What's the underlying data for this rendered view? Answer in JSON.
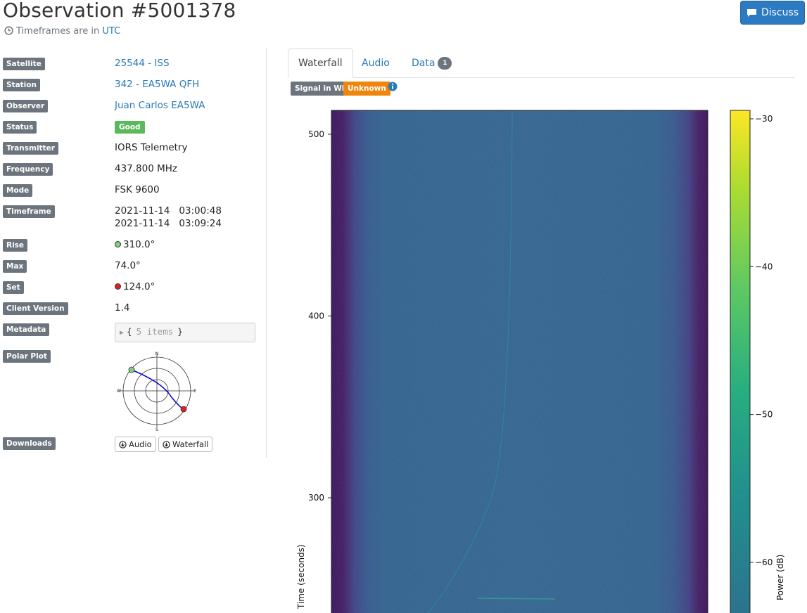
{
  "header": {
    "title": "Observation #5001378",
    "timeframes_prefix": "Timeframes are in",
    "timeframes_zone": "UTC",
    "discuss_label": "Discuss"
  },
  "details": {
    "satellite": {
      "label": "Satellite",
      "value": "25544 - ISS"
    },
    "station": {
      "label": "Station",
      "value": "342 - EA5WA QFH"
    },
    "observer": {
      "label": "Observer",
      "value": "Juan Carlos EA5WA"
    },
    "status": {
      "label": "Status",
      "value": "Good"
    },
    "transmitter": {
      "label": "Transmitter",
      "value": "IORS Telemetry"
    },
    "frequency": {
      "label": "Frequency",
      "value": "437.800 MHz"
    },
    "mode": {
      "label": "Mode",
      "value": "FSK 9600"
    },
    "timeframe": {
      "label": "Timeframe",
      "start": "2021-11-14   03:00:48",
      "end": "2021-11-14   03:09:24"
    },
    "rise": {
      "label": "Rise",
      "value": "310.0°",
      "color": "#7ed07e"
    },
    "max": {
      "label": "Max",
      "value": "74.0°"
    },
    "set": {
      "label": "Set",
      "value": "124.0°",
      "color": "#e02020"
    },
    "client_version": {
      "label": "Client Version",
      "value": "1.4"
    },
    "metadata": {
      "label": "Metadata",
      "open": "{",
      "items": "5 items",
      "close": "}"
    },
    "polar_plot": {
      "label": "Polar Plot",
      "n": "N",
      "s": "S",
      "e": "E",
      "w": "W"
    },
    "downloads": {
      "label": "Downloads",
      "audio": "Audio",
      "waterfall": "Waterfall"
    }
  },
  "tabs": [
    {
      "label": "Waterfall",
      "active": true
    },
    {
      "label": "Audio",
      "active": false
    },
    {
      "label": "Data",
      "active": false,
      "badge": "1"
    }
  ],
  "signal": {
    "label": "Signal in WF",
    "status": "Unknown",
    "status_color": "#f0850c",
    "info_icon": "info-circle-icon"
  },
  "chart_data": {
    "type": "heatmap",
    "ylabel": "Time (seconds)",
    "yticks": [
      300,
      400,
      500
    ],
    "ylim_visible": [
      240,
      512
    ],
    "colorbar_label": "Power (dB)",
    "colorbar_ticks": [
      -30,
      -40,
      -50,
      -60
    ],
    "colorbar_range": [
      -63,
      -29
    ],
    "colormap": "viridis"
  }
}
